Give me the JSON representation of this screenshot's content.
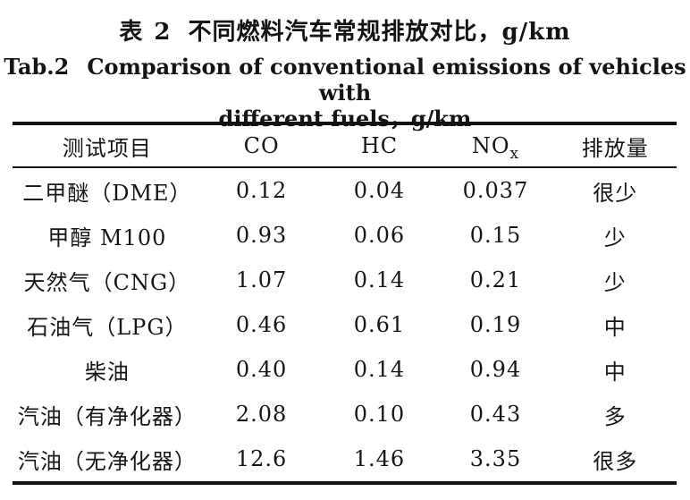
{
  "page": {
    "background": "#ffffff",
    "text_color": "#161616",
    "rule_color": "#121212"
  },
  "caption": {
    "zh_label": "表 2",
    "zh_text": "不同燃料汽车常规排放对比，g/km",
    "en_label": "Tab.2",
    "en_line1": "Comparison of conventional emissions of vehicles with",
    "en_line2": "different fuels，g/km"
  },
  "table": {
    "headers": {
      "item": "测试项目",
      "co": "CO",
      "hc": "HC",
      "nox_main": "NO",
      "nox_sub": "x",
      "level": "排放量"
    },
    "rows": [
      {
        "item": "二甲醚（DME）",
        "co": "0.12",
        "hc": "0.04",
        "nox": "0.037",
        "level": "很少"
      },
      {
        "item": "甲醇 M100",
        "co": "0.93",
        "hc": "0.06",
        "nox": "0.15",
        "level": "少"
      },
      {
        "item": "天然气（CNG）",
        "co": "1.07",
        "hc": "0.14",
        "nox": "0.21",
        "level": "少"
      },
      {
        "item": "石油气（LPG）",
        "co": "0.46",
        "hc": "0.61",
        "nox": "0.19",
        "level": "中"
      },
      {
        "item": "柴油",
        "co": "0.40",
        "hc": "0.14",
        "nox": "0.94",
        "level": "中"
      },
      {
        "item": "汽油（有净化器）",
        "co": "2.08",
        "hc": "0.10",
        "nox": "0.43",
        "level": "多"
      },
      {
        "item": "汽油（无净化器）",
        "co": "12.6",
        "hc": "1.46",
        "nox": "3.35",
        "level": "很多"
      }
    ]
  }
}
